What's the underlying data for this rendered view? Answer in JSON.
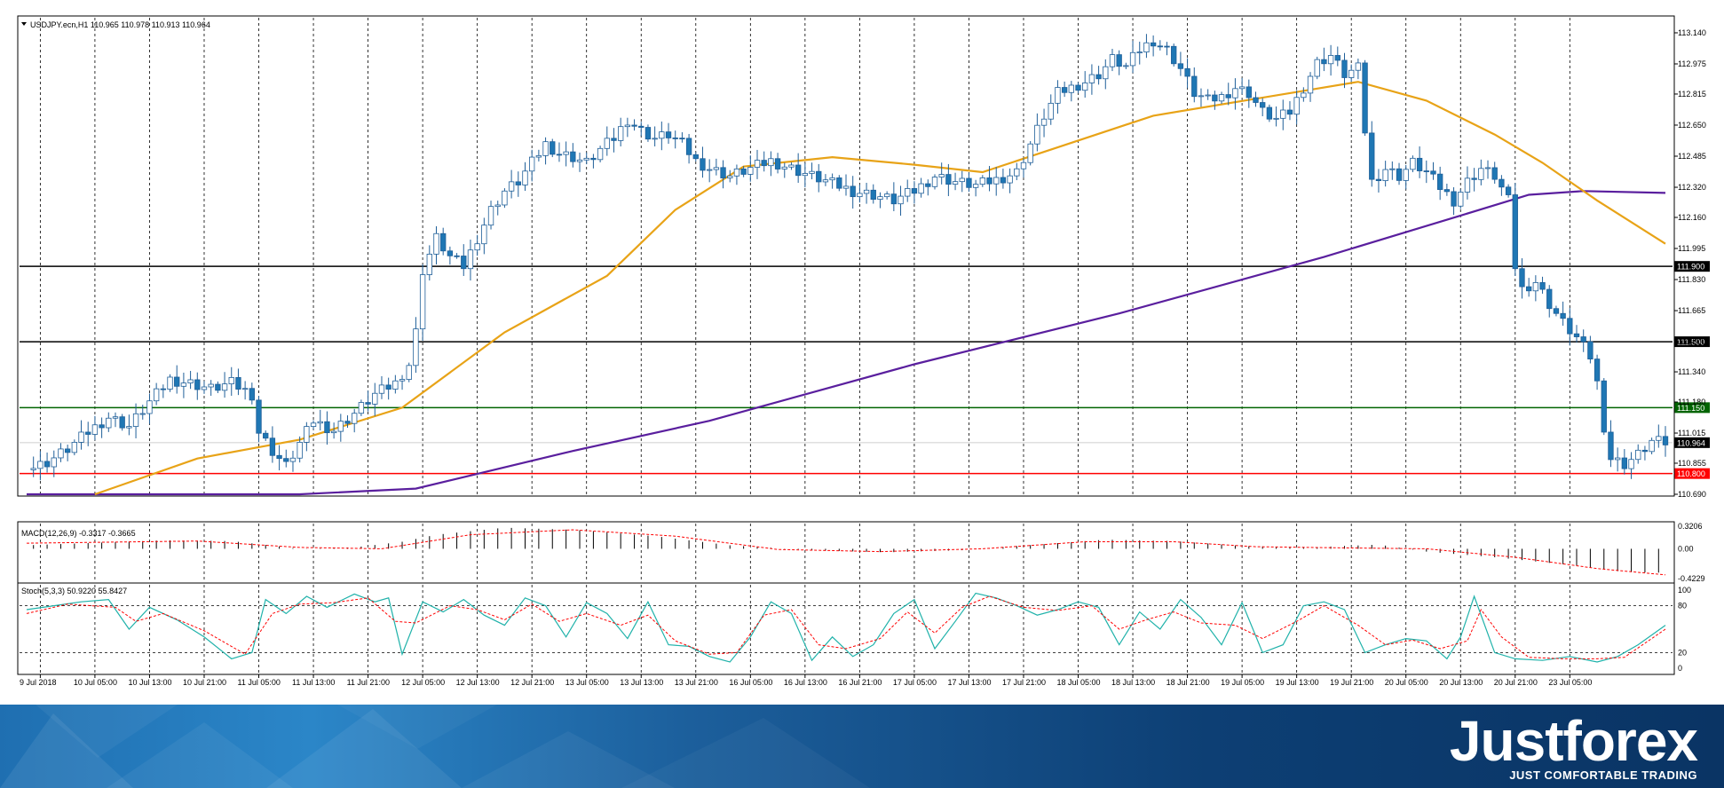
{
  "header": {
    "title": "USDJPY.ecn,H1  110.965 110.978 110.913 110.964"
  },
  "chart_data": {
    "type": "candlestick",
    "symbol": "USDJPY.ecn",
    "timeframe": "H1",
    "ohlc_last": {
      "open": 110.965,
      "high": 110.978,
      "low": 110.913,
      "close": 110.964
    },
    "ylim": [
      110.69,
      113.22
    ],
    "y_ticks": [
      "113.140",
      "112.975",
      "112.815",
      "112.650",
      "112.485",
      "112.320",
      "112.160",
      "111.995",
      "111.830",
      "111.665",
      "111.500",
      "111.340",
      "111.180",
      "111.015",
      "110.855",
      "110.690"
    ],
    "x_ticks": [
      "9 Jul 2018",
      "10 Jul 05:00",
      "10 Jul 13:00",
      "10 Jul 21:00",
      "11 Jul 05:00",
      "11 Jul 13:00",
      "11 Jul 21:00",
      "12 Jul 05:00",
      "12 Jul 13:00",
      "12 Jul 21:00",
      "13 Jul 05:00",
      "13 Jul 13:00",
      "13 Jul 21:00",
      "16 Jul 05:00",
      "16 Jul 13:00",
      "16 Jul 21:00",
      "17 Jul 05:00",
      "17 Jul 13:00",
      "17 Jul 21:00",
      "18 Jul 05:00",
      "18 Jul 13:00",
      "18 Jul 21:00",
      "19 Jul 05:00",
      "19 Jul 13:00",
      "19 Jul 21:00",
      "20 Jul 05:00",
      "20 Jul 13:00",
      "20 Jul 21:00",
      "23 Jul 05:00"
    ],
    "close_path": [
      [
        0,
        110.82
      ],
      [
        3,
        110.86
      ],
      [
        6,
        110.93
      ],
      [
        9,
        111.02
      ],
      [
        12,
        111.1
      ],
      [
        15,
        111.05
      ],
      [
        18,
        111.18
      ],
      [
        21,
        111.3
      ],
      [
        24,
        111.28
      ],
      [
        27,
        111.25
      ],
      [
        30,
        111.28
      ],
      [
        33,
        111.22
      ],
      [
        34,
        111.02
      ],
      [
        36,
        110.92
      ],
      [
        38,
        110.84
      ],
      [
        40,
        110.96
      ],
      [
        42,
        111.08
      ],
      [
        45,
        111.03
      ],
      [
        48,
        111.12
      ],
      [
        51,
        111.22
      ],
      [
        54,
        111.28
      ],
      [
        56,
        111.38
      ],
      [
        57,
        111.55
      ],
      [
        58,
        111.88
      ],
      [
        60,
        112.05
      ],
      [
        62,
        111.95
      ],
      [
        64,
        111.9
      ],
      [
        66,
        112.05
      ],
      [
        68,
        112.2
      ],
      [
        70,
        112.3
      ],
      [
        72,
        112.35
      ],
      [
        74,
        112.45
      ],
      [
        76,
        112.55
      ],
      [
        78,
        112.5
      ],
      [
        80,
        112.48
      ],
      [
        82,
        112.45
      ],
      [
        84,
        112.52
      ],
      [
        86,
        112.58
      ],
      [
        88,
        112.68
      ],
      [
        90,
        112.62
      ],
      [
        92,
        112.58
      ],
      [
        94,
        112.6
      ],
      [
        96,
        112.55
      ],
      [
        98,
        112.46
      ],
      [
        100,
        112.42
      ],
      [
        103,
        112.38
      ],
      [
        106,
        112.42
      ],
      [
        109,
        112.46
      ],
      [
        112,
        112.42
      ],
      [
        115,
        112.38
      ],
      [
        118,
        112.34
      ],
      [
        121,
        112.3
      ],
      [
        124,
        112.28
      ],
      [
        127,
        112.25
      ],
      [
        130,
        112.3
      ],
      [
        133,
        112.38
      ],
      [
        136,
        112.35
      ],
      [
        139,
        112.33
      ],
      [
        142,
        112.36
      ],
      [
        145,
        112.4
      ],
      [
        147,
        112.55
      ],
      [
        149,
        112.7
      ],
      [
        151,
        112.82
      ],
      [
        153,
        112.85
      ],
      [
        155,
        112.88
      ],
      [
        157,
        112.92
      ],
      [
        159,
        113.0
      ],
      [
        161,
        112.96
      ],
      [
        163,
        113.05
      ],
      [
        165,
        113.1
      ],
      [
        167,
        113.05
      ],
      [
        169,
        112.95
      ],
      [
        171,
        112.82
      ],
      [
        173,
        112.78
      ],
      [
        175,
        112.8
      ],
      [
        177,
        112.85
      ],
      [
        179,
        112.82
      ],
      [
        181,
        112.72
      ],
      [
        183,
        112.68
      ],
      [
        185,
        112.72
      ],
      [
        187,
        112.85
      ],
      [
        189,
        112.98
      ],
      [
        191,
        113.02
      ],
      [
        193,
        112.92
      ],
      [
        195,
        112.95
      ],
      [
        196,
        112.62
      ],
      [
        197,
        112.35
      ],
      [
        199,
        112.42
      ],
      [
        201,
        112.38
      ],
      [
        203,
        112.45
      ],
      [
        205,
        112.4
      ],
      [
        207,
        112.32
      ],
      [
        209,
        112.25
      ],
      [
        211,
        112.35
      ],
      [
        213,
        112.42
      ],
      [
        215,
        112.38
      ],
      [
        217,
        112.25
      ],
      [
        218,
        111.9
      ],
      [
        219,
        111.78
      ],
      [
        221,
        111.82
      ],
      [
        223,
        111.7
      ],
      [
        225,
        111.6
      ],
      [
        227,
        111.52
      ],
      [
        229,
        111.42
      ],
      [
        230,
        111.28
      ],
      [
        231,
        111.05
      ],
      [
        232,
        110.88
      ],
      [
        234,
        110.85
      ],
      [
        236,
        110.9
      ],
      [
        238,
        110.97
      ],
      [
        240,
        110.964
      ]
    ],
    "ma_slow": [
      [
        0,
        110.6
      ],
      [
        20,
        110.62
      ],
      [
        40,
        110.68
      ],
      [
        57,
        110.72
      ],
      [
        80,
        110.92
      ],
      [
        100,
        111.08
      ],
      [
        130,
        111.38
      ],
      [
        160,
        111.65
      ],
      [
        190,
        111.95
      ],
      [
        210,
        112.17
      ],
      [
        220,
        112.28
      ],
      [
        228,
        112.3
      ],
      [
        240,
        112.29
      ]
    ],
    "ma_fast": [
      [
        10,
        110.62
      ],
      [
        25,
        110.88
      ],
      [
        40,
        110.98
      ],
      [
        55,
        111.15
      ],
      [
        70,
        111.55
      ],
      [
        85,
        111.85
      ],
      [
        95,
        112.2
      ],
      [
        105,
        112.43
      ],
      [
        118,
        112.48
      ],
      [
        130,
        112.44
      ],
      [
        140,
        112.4
      ],
      [
        150,
        112.52
      ],
      [
        165,
        112.7
      ],
      [
        185,
        112.82
      ],
      [
        195,
        112.88
      ],
      [
        205,
        112.78
      ],
      [
        215,
        112.6
      ],
      [
        222,
        112.45
      ],
      [
        230,
        112.25
      ],
      [
        240,
        112.02
      ]
    ],
    "levels": [
      {
        "label": "111.900",
        "value": 111.9,
        "color": "#000000"
      },
      {
        "label": "111.500",
        "value": 111.5,
        "color": "#000000"
      },
      {
        "label": "111.150",
        "value": 111.15,
        "color": "#006400"
      },
      {
        "label": "110.800",
        "value": 110.8,
        "color": "#ff0000"
      }
    ],
    "current_price_label": "110.964",
    "current_price": 110.964,
    "macd": {
      "title": "MACD(12,26,9) -0.3317 -0.3665",
      "range": [
        -0.4229,
        0.3206
      ],
      "ticks": [
        "0.3206",
        "0.00",
        "-0.4229"
      ],
      "hist_path": [
        [
          0,
          0.05
        ],
        [
          20,
          0.12
        ],
        [
          30,
          0.11
        ],
        [
          40,
          0.0
        ],
        [
          48,
          0.02
        ],
        [
          55,
          0.1
        ],
        [
          60,
          0.2
        ],
        [
          70,
          0.3
        ],
        [
          80,
          0.27
        ],
        [
          92,
          0.18
        ],
        [
          103,
          0.05
        ],
        [
          115,
          -0.02
        ],
        [
          126,
          -0.05
        ],
        [
          137,
          -0.02
        ],
        [
          148,
          0.06
        ],
        [
          158,
          0.13
        ],
        [
          168,
          0.11
        ],
        [
          178,
          0.04
        ],
        [
          188,
          0.02
        ],
        [
          198,
          0.06
        ],
        [
          205,
          -0.04
        ],
        [
          215,
          -0.12
        ],
        [
          225,
          -0.22
        ],
        [
          234,
          -0.33
        ],
        [
          240,
          -0.34
        ]
      ],
      "signal_path": [
        [
          0,
          0.08
        ],
        [
          25,
          0.11
        ],
        [
          40,
          0.02
        ],
        [
          52,
          0.0
        ],
        [
          65,
          0.2
        ],
        [
          80,
          0.27
        ],
        [
          95,
          0.18
        ],
        [
          110,
          -0.01
        ],
        [
          125,
          -0.04
        ],
        [
          140,
          0.0
        ],
        [
          155,
          0.1
        ],
        [
          168,
          0.1
        ],
        [
          180,
          0.03
        ],
        [
          195,
          0.01
        ],
        [
          205,
          0.0
        ],
        [
          218,
          -0.12
        ],
        [
          230,
          -0.28
        ],
        [
          240,
          -0.37
        ]
      ]
    },
    "stoch": {
      "title": "Stoch(5,3,3) 50.9220 55.8427",
      "ticks": [
        "100",
        "80",
        "20",
        "0"
      ],
      "main_k": [
        [
          0,
          75
        ],
        [
          4,
          80
        ],
        [
          8,
          85
        ],
        [
          12,
          88
        ],
        [
          15,
          50
        ],
        [
          18,
          78
        ],
        [
          22,
          62
        ],
        [
          26,
          40
        ],
        [
          30,
          12
        ],
        [
          33,
          20
        ],
        [
          35,
          88
        ],
        [
          38,
          70
        ],
        [
          41,
          92
        ],
        [
          44,
          78
        ],
        [
          48,
          95
        ],
        [
          51,
          85
        ],
        [
          53,
          90
        ],
        [
          55,
          18
        ],
        [
          58,
          85
        ],
        [
          61,
          72
        ],
        [
          64,
          88
        ],
        [
          67,
          68
        ],
        [
          70,
          55
        ],
        [
          73,
          90
        ],
        [
          76,
          80
        ],
        [
          79,
          40
        ],
        [
          82,
          84
        ],
        [
          85,
          70
        ],
        [
          88,
          38
        ],
        [
          91,
          85
        ],
        [
          94,
          30
        ],
        [
          97,
          28
        ],
        [
          100,
          15
        ],
        [
          103,
          8
        ],
        [
          106,
          40
        ],
        [
          109,
          85
        ],
        [
          112,
          70
        ],
        [
          115,
          10
        ],
        [
          118,
          40
        ],
        [
          121,
          15
        ],
        [
          124,
          30
        ],
        [
          127,
          70
        ],
        [
          130,
          88
        ],
        [
          133,
          25
        ],
        [
          136,
          60
        ],
        [
          139,
          96
        ],
        [
          142,
          90
        ],
        [
          145,
          80
        ],
        [
          148,
          68
        ],
        [
          151,
          75
        ],
        [
          154,
          85
        ],
        [
          157,
          78
        ],
        [
          160,
          30
        ],
        [
          163,
          72
        ],
        [
          166,
          50
        ],
        [
          169,
          88
        ],
        [
          172,
          65
        ],
        [
          175,
          30
        ],
        [
          178,
          84
        ],
        [
          181,
          20
        ],
        [
          184,
          30
        ],
        [
          187,
          80
        ],
        [
          190,
          85
        ],
        [
          193,
          75
        ],
        [
          196,
          20
        ],
        [
          199,
          30
        ],
        [
          202,
          38
        ],
        [
          205,
          35
        ],
        [
          208,
          12
        ],
        [
          210,
          40
        ],
        [
          212,
          92
        ],
        [
          215,
          20
        ],
        [
          218,
          12
        ],
        [
          222,
          10
        ],
        [
          226,
          15
        ],
        [
          230,
          8
        ],
        [
          233,
          15
        ],
        [
          236,
          30
        ],
        [
          240,
          55
        ]
      ],
      "signal_d": [
        [
          0,
          70
        ],
        [
          6,
          82
        ],
        [
          13,
          78
        ],
        [
          16,
          60
        ],
        [
          20,
          70
        ],
        [
          26,
          48
        ],
        [
          32,
          18
        ],
        [
          36,
          70
        ],
        [
          40,
          82
        ],
        [
          45,
          84
        ],
        [
          50,
          90
        ],
        [
          54,
          60
        ],
        [
          57,
          58
        ],
        [
          62,
          80
        ],
        [
          66,
          75
        ],
        [
          70,
          62
        ],
        [
          74,
          82
        ],
        [
          78,
          60
        ],
        [
          82,
          70
        ],
        [
          87,
          55
        ],
        [
          91,
          68
        ],
        [
          95,
          35
        ],
        [
          100,
          18
        ],
        [
          104,
          20
        ],
        [
          108,
          68
        ],
        [
          112,
          75
        ],
        [
          116,
          30
        ],
        [
          120,
          25
        ],
        [
          125,
          38
        ],
        [
          129,
          72
        ],
        [
          133,
          45
        ],
        [
          137,
          78
        ],
        [
          141,
          92
        ],
        [
          146,
          78
        ],
        [
          151,
          74
        ],
        [
          156,
          80
        ],
        [
          160,
          50
        ],
        [
          164,
          62
        ],
        [
          168,
          72
        ],
        [
          172,
          58
        ],
        [
          177,
          55
        ],
        [
          181,
          38
        ],
        [
          186,
          60
        ],
        [
          190,
          80
        ],
        [
          195,
          55
        ],
        [
          199,
          30
        ],
        [
          203,
          36
        ],
        [
          207,
          25
        ],
        [
          211,
          35
        ],
        [
          213,
          75
        ],
        [
          216,
          40
        ],
        [
          220,
          14
        ],
        [
          225,
          12
        ],
        [
          230,
          12
        ],
        [
          234,
          14
        ],
        [
          240,
          50
        ]
      ]
    }
  },
  "branding": {
    "logo": "Justforex",
    "tagline": "JUST COMFORTABLE TRADING"
  },
  "colors": {
    "bull": "#ffffff",
    "bear": "#1f77b4",
    "ma_slow": "#5a1f9e",
    "ma_fast": "#e8a317",
    "stoch_main": "#20b2aa",
    "stoch_signal": "#ff0000"
  }
}
